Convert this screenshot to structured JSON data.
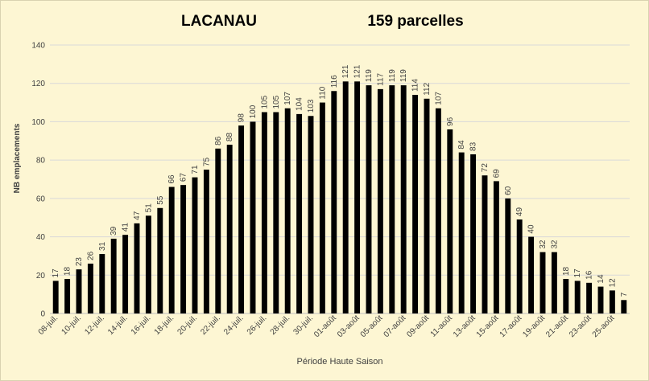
{
  "chart_data": {
    "type": "bar",
    "title_left": "LACANAU",
    "title_right": "159 parcelles",
    "xlabel": "Période Haute Saison",
    "ylabel": "NB emplacements",
    "ylim": [
      0,
      140
    ],
    "yticks": [
      0,
      20,
      40,
      60,
      80,
      100,
      120,
      140
    ],
    "grid": true,
    "legend": "none",
    "bar_color": "#000000",
    "categories": [
      "08-juil.",
      "09-juil.",
      "10-juil.",
      "11-juil.",
      "12-juil.",
      "13-juil.",
      "14-juil.",
      "15-juil.",
      "16-juil.",
      "17-juil.",
      "18-juil.",
      "19-juil.",
      "20-juil.",
      "21-juil.",
      "22-juil.",
      "23-juil.",
      "24-juil.",
      "25-juil.",
      "26-juil.",
      "27-juil.",
      "28-juil.",
      "29-juil.",
      "30-juil.",
      "31-juil.",
      "01-août",
      "02-août",
      "03-août",
      "04-août",
      "05-août",
      "06-août",
      "07-août",
      "08-août",
      "09-août",
      "10-août",
      "11-août",
      "12-août",
      "13-août",
      "14-août",
      "15-août",
      "16-août",
      "17-août",
      "18-août",
      "19-août",
      "20-août",
      "21-août",
      "22-août",
      "23-août",
      "24-août",
      "25-août",
      "26-août"
    ],
    "values": [
      17,
      18,
      23,
      26,
      31,
      39,
      41,
      47,
      51,
      55,
      66,
      67,
      71,
      75,
      86,
      88,
      98,
      100,
      105,
      105,
      107,
      104,
      103,
      110,
      116,
      121,
      121,
      119,
      117,
      119,
      119,
      114,
      112,
      107,
      96,
      84,
      83,
      72,
      69,
      60,
      49,
      40,
      32,
      32,
      18,
      17,
      16,
      14,
      12,
      7
    ]
  }
}
